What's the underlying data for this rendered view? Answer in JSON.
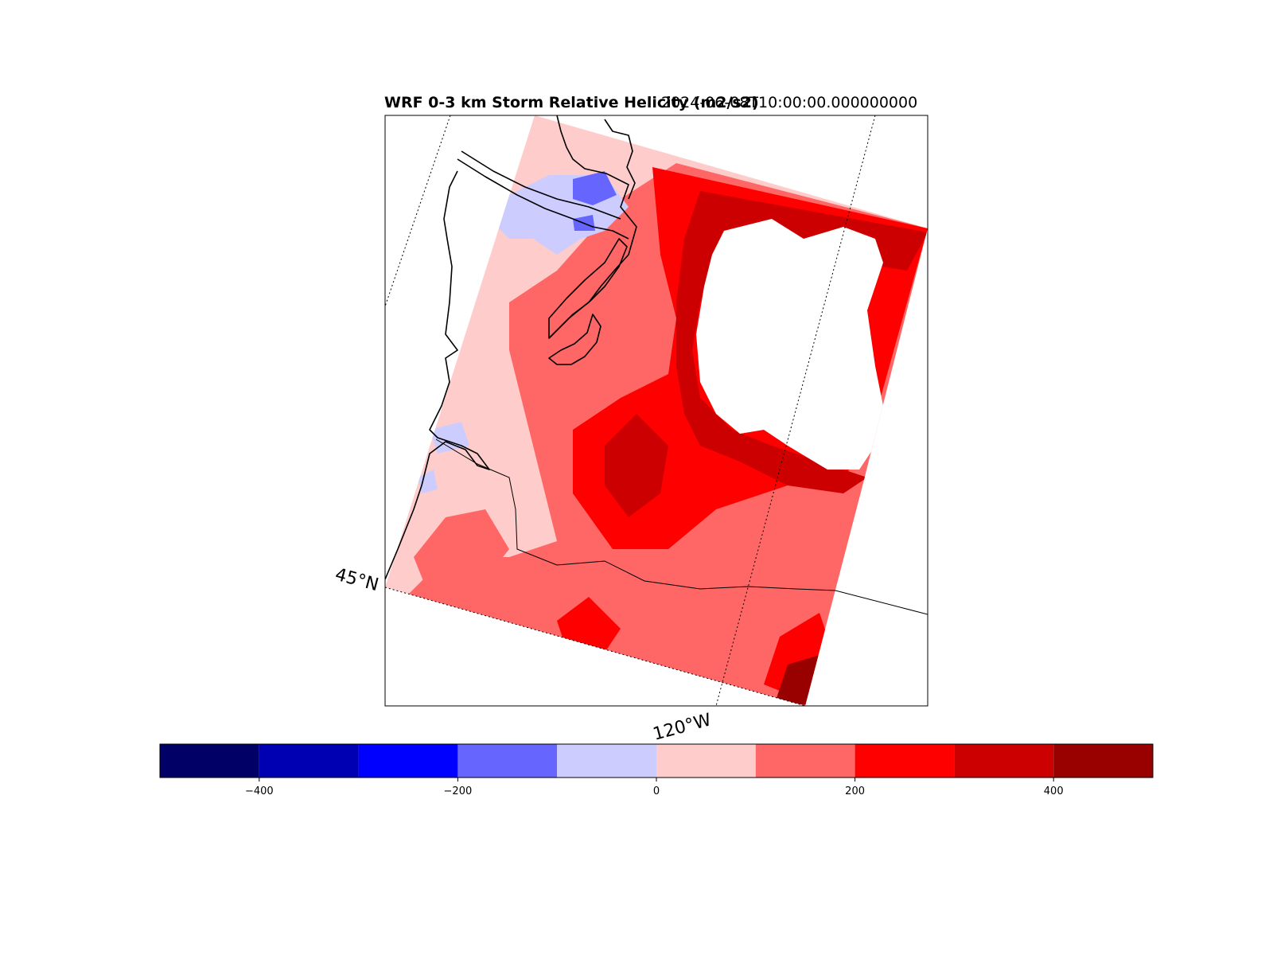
{
  "title": {
    "left": "WRF 0-3 km Storm Relative Helicity (m2/s2)",
    "right": "2024-06-08T10:00:00.000000000"
  },
  "map": {
    "lat_label": "45°N",
    "lon_label": "120°W",
    "colors": {
      "neg_strong": "#6666ff",
      "neg_weak": "#ccccff",
      "pos_weak": "#ffcccc",
      "pos_mid": "#ff6666",
      "pos_strong": "#ff0000",
      "pos_very_strong": "#cc0000",
      "pos_extreme": "#990000"
    }
  },
  "colorbar": {
    "levels": [
      -500,
      -400,
      -300,
      -200,
      -100,
      0,
      100,
      200,
      300,
      400,
      500
    ],
    "colors": [
      "#000066",
      "#0000b3",
      "#0000ff",
      "#6666ff",
      "#ccccff",
      "#ffcccc",
      "#ff6666",
      "#ff0000",
      "#cc0000",
      "#990000"
    ],
    "ticks": [
      {
        "value": -400,
        "label": "−400"
      },
      {
        "value": -200,
        "label": "−200"
      },
      {
        "value": 0,
        "label": "0"
      },
      {
        "value": 200,
        "label": "200"
      },
      {
        "value": 400,
        "label": "400"
      }
    ]
  }
}
